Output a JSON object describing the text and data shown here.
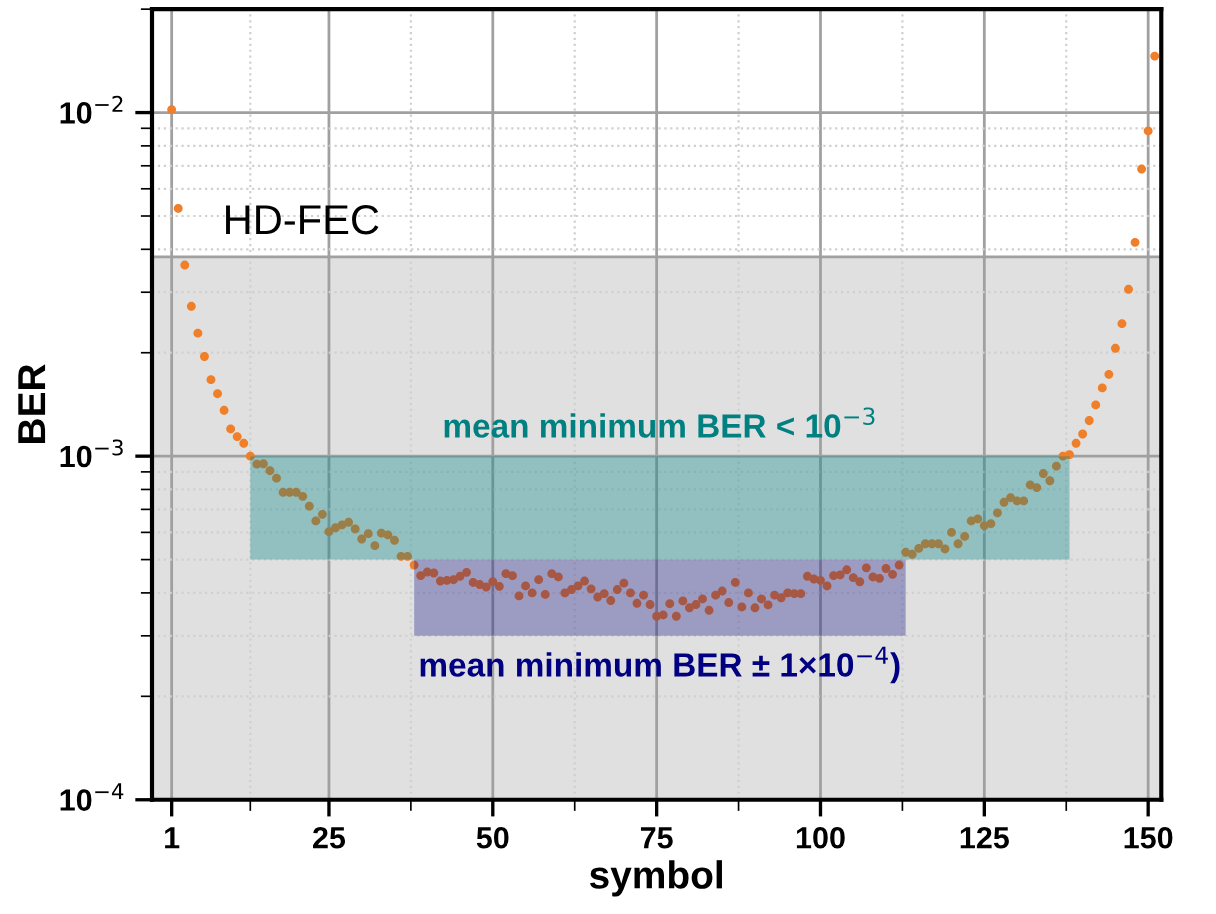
{
  "chart_data": {
    "type": "scatter",
    "xlabel": "symbol",
    "ylabel": "BER",
    "log": "y",
    "grid": true,
    "marker": "circle",
    "x": [
      1,
      2,
      3,
      4,
      5,
      6,
      7,
      8,
      9,
      10,
      11,
      12,
      13,
      14,
      15,
      16,
      17,
      18,
      19,
      20,
      21,
      22,
      23,
      24,
      25,
      26,
      27,
      28,
      29,
      30,
      31,
      32,
      33,
      34,
      35,
      36,
      37,
      38,
      39,
      40,
      41,
      42,
      43,
      44,
      45,
      46,
      47,
      48,
      49,
      50,
      51,
      52,
      53,
      54,
      55,
      56,
      57,
      58,
      59,
      60,
      61,
      62,
      63,
      64,
      65,
      66,
      67,
      68,
      69,
      70,
      71,
      72,
      73,
      74,
      75,
      76,
      77,
      78,
      79,
      80,
      81,
      82,
      83,
      84,
      85,
      86,
      87,
      88,
      89,
      90,
      91,
      92,
      93,
      94,
      95,
      96,
      97,
      98,
      99,
      100,
      101,
      102,
      103,
      104,
      105,
      106,
      107,
      108,
      109,
      110,
      111,
      112,
      113,
      114,
      115,
      116,
      117,
      118,
      119,
      120,
      121,
      122,
      123,
      124,
      125,
      126,
      127,
      128,
      129,
      130,
      131,
      132,
      133,
      134,
      135,
      136,
      137,
      138,
      139,
      140,
      141,
      142,
      143,
      144,
      145,
      146,
      147,
      148,
      149,
      150,
      151
    ],
    "series": [
      {
        "color": "#f07f2a",
        "values": [
          0.0102,
          0.00526,
          0.0036,
          0.00273,
          0.00228,
          0.00195,
          0.00167,
          0.00152,
          0.00136,
          0.0012,
          0.00114,
          0.00109,
          0.001,
          0.000948,
          0.00095,
          0.000907,
          0.000863,
          0.000785,
          0.000785,
          0.000785,
          0.000764,
          0.000715,
          0.000648,
          0.000677,
          0.000603,
          0.000619,
          0.000631,
          0.000642,
          0.000614,
          0.000574,
          0.000595,
          0.000549,
          0.000597,
          0.00059,
          0.000569,
          0.000511,
          0.000511,
          0.000482,
          0.000449,
          0.00046,
          0.000457,
          0.000433,
          0.000435,
          0.000437,
          0.000447,
          0.000459,
          0.000429,
          0.000423,
          0.000416,
          0.000431,
          0.000418,
          0.000455,
          0.000449,
          0.000392,
          0.000419,
          0.0004,
          0.000437,
          0.000396,
          0.000455,
          0.000445,
          0.0004,
          0.000409,
          0.000419,
          0.000433,
          0.000411,
          0.000389,
          0.000398,
          0.00038,
          0.000409,
          0.000427,
          0.0004,
          0.000373,
          0.000394,
          0.00037,
          0.000342,
          0.000345,
          0.000372,
          0.000342,
          0.000379,
          0.000362,
          0.00037,
          0.000384,
          0.000356,
          0.000394,
          0.000405,
          0.000375,
          0.000429,
          0.000364,
          0.0004,
          0.000362,
          0.000384,
          0.000369,
          0.000394,
          0.000387,
          0.0004,
          0.000398,
          0.000398,
          0.000447,
          0.000439,
          0.000435,
          0.000419,
          0.000449,
          0.000451,
          0.000467,
          0.000443,
          0.000431,
          0.000473,
          0.000445,
          0.000441,
          0.000471,
          0.000453,
          0.000482,
          0.000525,
          0.000518,
          0.000539,
          0.000556,
          0.000556,
          0.000556,
          0.000537,
          0.0006,
          0.000556,
          0.000584,
          0.000648,
          0.000657,
          0.000628,
          0.000636,
          0.000684,
          0.000734,
          0.000757,
          0.000741,
          0.000741,
          0.000825,
          0.00081,
          0.00089,
          0.000848,
          0.000935,
          0.001,
          0.00101,
          0.00109,
          0.00116,
          0.00127,
          0.00141,
          0.00158,
          0.00173,
          0.00206,
          0.00243,
          0.00306,
          0.00419,
          0.00685,
          0.00884,
          0.0146
        ]
      }
    ],
    "xlim": [
      -2,
      152
    ],
    "xticks": [
      1,
      25,
      50,
      75,
      100,
      125,
      150
    ],
    "ylim": [
      0.0001,
      0.02
    ],
    "yticks": [
      {
        "value": 0.0001,
        "label": "10$^{−4}$"
      },
      {
        "value": 0.001,
        "label": "10$^{−3}$"
      },
      {
        "value": 0.01,
        "label": "10$^{−2}$"
      }
    ],
    "bands": [
      {
        "axis": "y",
        "from": 0.0001,
        "to": 0.0038,
        "color": "#e0e0e0",
        "label": "HD-FEC"
      },
      {
        "axis": "y",
        "from": 0.0005,
        "to": 0.001,
        "color": "#008080",
        "label": "mean minimum BER < 10$^{−3}$"
      },
      {
        "axis": "y",
        "from": 0.0003,
        "to": 0.0005,
        "color": "#000080",
        "label": "mean minimum BER ± 1×10$^{−4}$)"
      }
    ]
  }
}
